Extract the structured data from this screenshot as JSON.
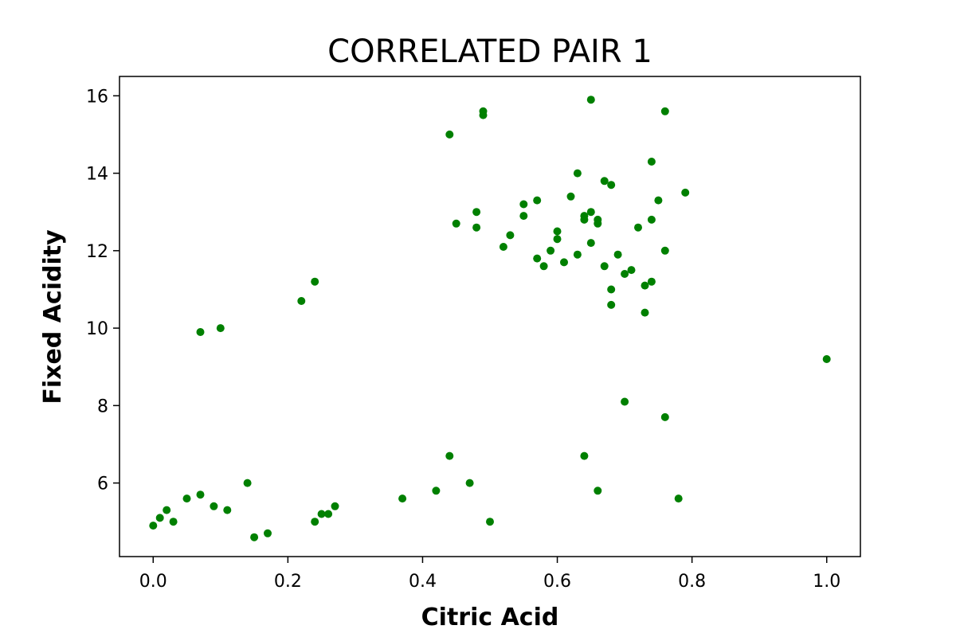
{
  "chart_data": {
    "type": "scatter",
    "title": "CORRELATED PAIR 1",
    "xlabel": "Citric Acid",
    "ylabel": "Fixed Acidity",
    "xlim": [
      -0.05,
      1.05
    ],
    "ylim": [
      4.1,
      16.5
    ],
    "xticks": [
      0.0,
      0.2,
      0.4,
      0.6,
      0.8,
      1.0
    ],
    "xtick_labels": [
      "0.0",
      "0.2",
      "0.4",
      "0.6",
      "0.8",
      "1.0"
    ],
    "yticks": [
      6,
      8,
      10,
      12,
      14,
      16
    ],
    "ytick_labels": [
      "6",
      "8",
      "10",
      "12",
      "14",
      "16"
    ],
    "grid": false,
    "marker_color": "#008000",
    "series": [
      {
        "x": [
          1.0,
          0.65,
          0.76,
          0.49,
          0.49,
          0.44,
          0.74,
          0.79,
          0.63,
          0.67,
          0.68,
          0.75,
          0.62,
          0.66,
          0.66,
          0.64,
          0.64,
          0.65,
          0.72,
          0.74,
          0.73,
          0.76,
          0.69,
          0.71,
          0.7,
          0.68,
          0.68,
          0.67,
          0.7,
          0.76,
          0.78,
          0.66,
          0.64,
          0.74,
          0.73,
          0.5,
          0.15,
          0.17,
          0.24,
          0.25,
          0.26,
          0.27,
          0.37,
          0.42,
          0.44,
          0.47,
          0.0,
          0.01,
          0.02,
          0.03,
          0.05,
          0.07,
          0.09,
          0.11,
          0.14,
          0.45,
          0.55,
          0.57,
          0.6,
          0.48,
          0.53,
          0.55,
          0.59,
          0.61,
          0.63,
          0.65,
          0.24,
          0.1,
          0.07,
          0.22,
          0.57,
          0.58,
          0.6,
          0.48,
          0.52
        ],
        "y": [
          9.2,
          15.9,
          15.6,
          15.6,
          15.5,
          15.0,
          14.3,
          13.5,
          14.0,
          13.8,
          13.7,
          13.3,
          13.4,
          12.8,
          12.7,
          12.8,
          12.9,
          13.0,
          12.6,
          12.8,
          11.1,
          12.0,
          11.9,
          11.5,
          11.4,
          11.0,
          10.6,
          11.6,
          8.1,
          7.7,
          5.6,
          5.8,
          6.7,
          11.2,
          10.4,
          5.0,
          4.6,
          4.7,
          5.0,
          5.2,
          5.2,
          5.4,
          5.6,
          5.8,
          6.7,
          6.0,
          4.9,
          5.1,
          5.3,
          5.0,
          5.6,
          5.7,
          5.4,
          5.3,
          6.0,
          12.7,
          13.2,
          13.3,
          12.5,
          13.0,
          12.4,
          12.9,
          12.0,
          11.7,
          11.9,
          12.2,
          11.2,
          10.0,
          9.9,
          10.7,
          11.8,
          11.6,
          12.3,
          12.6,
          12.1
        ]
      }
    ]
  }
}
